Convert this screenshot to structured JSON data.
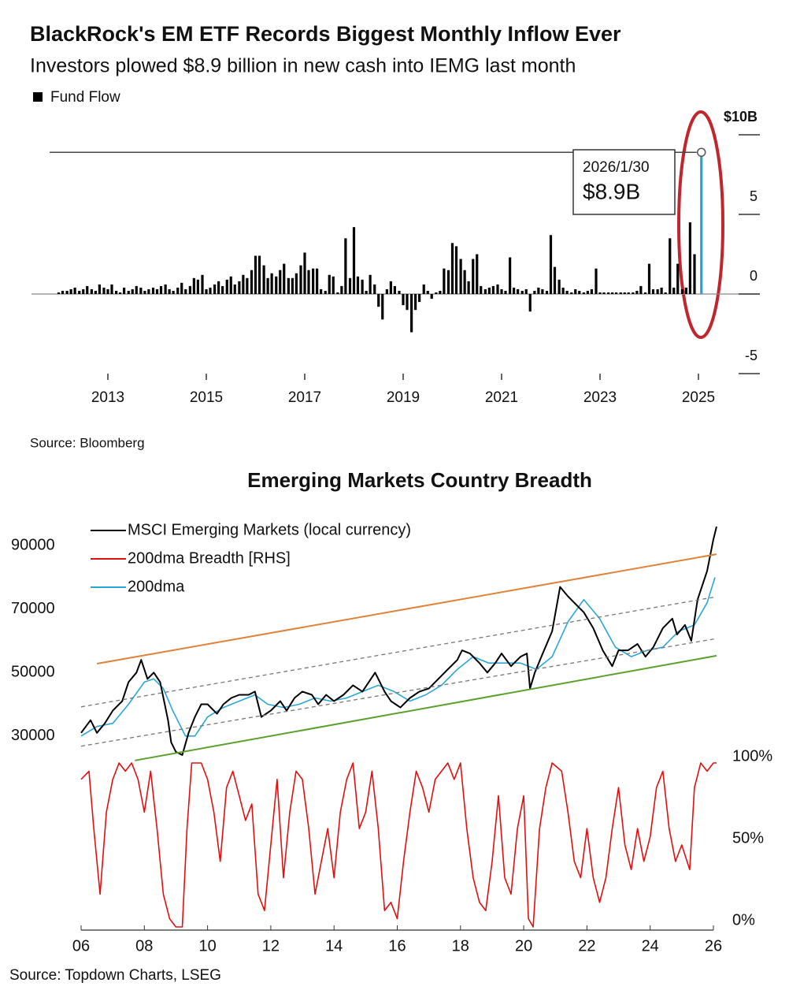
{
  "chart_data": [
    {
      "type": "bar",
      "title": "BlackRock's EM ETF Records Biggest Monthly Inflow Ever",
      "subtitle": "Investors plowed $8.9 billion in new cash into IEMG last month",
      "source": "Source: Bloomberg",
      "annotation": {
        "date": "2026/1/30",
        "label": "$8.9B"
      },
      "highlight_color": "#2a9fd6",
      "xlim": [
        2011.45,
        2026.3
      ],
      "xticks": [
        2013,
        2015,
        2017,
        2019,
        2021,
        2023,
        2025
      ],
      "ylim": [
        -5,
        11
      ],
      "yticks": [
        {
          "value": 10,
          "label": "$10B"
        },
        5,
        0,
        -5
      ],
      "x": [
        2012.0,
        2012.08,
        2012.17,
        2012.25,
        2012.33,
        2012.42,
        2012.5,
        2012.58,
        2012.67,
        2012.75,
        2012.83,
        2012.92,
        2013.0,
        2013.08,
        2013.17,
        2013.25,
        2013.33,
        2013.42,
        2013.5,
        2013.58,
        2013.67,
        2013.75,
        2013.83,
        2013.92,
        2014.0,
        2014.08,
        2014.17,
        2014.25,
        2014.33,
        2014.42,
        2014.5,
        2014.58,
        2014.67,
        2014.75,
        2014.83,
        2014.92,
        2015.0,
        2015.08,
        2015.17,
        2015.25,
        2015.33,
        2015.42,
        2015.5,
        2015.58,
        2015.67,
        2015.75,
        2015.83,
        2015.92,
        2016.0,
        2016.08,
        2016.17,
        2016.25,
        2016.33,
        2016.42,
        2016.5,
        2016.58,
        2016.67,
        2016.75,
        2016.83,
        2016.92,
        2017.0,
        2017.08,
        2017.17,
        2017.25,
        2017.33,
        2017.42,
        2017.5,
        2017.58,
        2017.67,
        2017.75,
        2017.83,
        2017.92,
        2018.0,
        2018.08,
        2018.17,
        2018.25,
        2018.33,
        2018.42,
        2018.5,
        2018.58,
        2018.67,
        2018.75,
        2018.83,
        2018.92,
        2019.0,
        2019.08,
        2019.17,
        2019.25,
        2019.33,
        2019.42,
        2019.5,
        2019.58,
        2019.67,
        2019.75,
        2019.83,
        2019.92,
        2020.0,
        2020.08,
        2020.17,
        2020.25,
        2020.33,
        2020.42,
        2020.5,
        2020.58,
        2020.67,
        2020.75,
        2020.83,
        2020.92,
        2021.0,
        2021.08,
        2021.17,
        2021.25,
        2021.33,
        2021.42,
        2021.5,
        2021.58,
        2021.67,
        2021.75,
        2021.83,
        2021.92,
        2022.0,
        2022.08,
        2022.17,
        2022.25,
        2022.33,
        2022.42,
        2022.5,
        2022.58,
        2022.67,
        2022.75,
        2022.83,
        2022.92,
        2023.0,
        2023.08,
        2023.17,
        2023.25,
        2023.33,
        2023.42,
        2023.5,
        2023.58,
        2023.67,
        2023.75,
        2023.83,
        2023.92,
        2024.0,
        2024.08,
        2024.17,
        2024.25,
        2024.33,
        2024.42,
        2024.5,
        2024.58,
        2024.67,
        2024.75,
        2024.83,
        2024.92,
        2025.06
      ],
      "series": [
        {
          "name": "Fund Flow",
          "color": "#000000",
          "values": [
            0.1,
            0.2,
            0.2,
            0.3,
            0.4,
            0.2,
            0.3,
            0.5,
            0.3,
            0.2,
            0.6,
            0.4,
            0.3,
            0.6,
            0.2,
            0.1,
            0.4,
            0.2,
            0.3,
            0.5,
            0.4,
            0.2,
            0.3,
            0.4,
            0.3,
            0.5,
            0.6,
            0.3,
            0.2,
            0.4,
            0.7,
            0.3,
            0.5,
            1.0,
            0.9,
            1.2,
            0.3,
            0.4,
            0.6,
            0.8,
            0.5,
            0.9,
            1.1,
            0.6,
            0.8,
            1.2,
            1.0,
            1.5,
            2.4,
            2.4,
            1.8,
            1.0,
            1.3,
            1.1,
            1.5,
            1.9,
            1.0,
            1.0,
            1.3,
            1.8,
            2.6,
            1.5,
            1.6,
            1.6,
            0.3,
            0.2,
            1.2,
            1.1,
            0.1,
            0.5,
            3.5,
            1.0,
            4.2,
            1.1,
            0.9,
            0.2,
            1.2,
            0.6,
            -0.8,
            -1.6,
            0.3,
            0.8,
            0.5,
            0.2,
            -0.7,
            -1.0,
            -2.4,
            -1.0,
            -0.5,
            0.6,
            0.2,
            -0.3,
            0.1,
            0.2,
            1.6,
            1.5,
            3.2,
            3.0,
            2.2,
            1.5,
            0.8,
            2.2,
            2.5,
            0.5,
            0.3,
            0.4,
            0.5,
            0.6,
            0.3,
            0.2,
            2.3,
            0.4,
            0.3,
            0.2,
            0.3,
            -1.1,
            0.2,
            0.4,
            0.3,
            0.2,
            3.7,
            1.7,
            0.9,
            0.4,
            0.2,
            0.1,
            0.3,
            0.2,
            0.1,
            0.2,
            0.3,
            1.6,
            0.1,
            0.1,
            0.1,
            0.1,
            0.1,
            0.1,
            0.1,
            0.1,
            0.1,
            0.2,
            0.5,
            0.1,
            1.9,
            0.3,
            0.3,
            0.4,
            0.1,
            3.5,
            0.4,
            1.9,
            0.3,
            0.4,
            4.5,
            2.5,
            8.9
          ]
        }
      ]
    },
    {
      "type": "line",
      "title": "Emerging Markets Country Breadth",
      "source": "Source: Topdown Charts, LSEG",
      "xlim": [
        2006,
        2026
      ],
      "xticks": [
        {
          "value": 2006,
          "label": "06"
        },
        {
          "value": 2008,
          "label": "08"
        },
        {
          "value": 2010,
          "label": "10"
        },
        {
          "value": 2012,
          "label": "12"
        },
        {
          "value": 2014,
          "label": "14"
        },
        {
          "value": 2016,
          "label": "16"
        },
        {
          "value": 2018,
          "label": "18"
        },
        {
          "value": 2020,
          "label": "20"
        },
        {
          "value": 2022,
          "label": "22"
        },
        {
          "value": 2024,
          "label": "24"
        },
        {
          "value": 2026,
          "label": "26"
        }
      ],
      "ylim": [
        22000,
        99000
      ],
      "yticks": [
        30000,
        50000,
        70000,
        90000
      ],
      "y2lim": [
        0,
        100
      ],
      "y2ticks": [
        {
          "value": 0,
          "label": "0%"
        },
        {
          "value": 50,
          "label": "50%"
        },
        {
          "value": 100,
          "label": "100%"
        }
      ],
      "series": [
        {
          "name": "MSCI Emerging Markets (local currency)",
          "color": "#000000",
          "x": [
            2006.0,
            2006.3,
            2006.5,
            2006.75,
            2007.0,
            2007.3,
            2007.5,
            2007.75,
            2007.9,
            2008.1,
            2008.3,
            2008.5,
            2008.75,
            2008.85,
            2009.0,
            2009.2,
            2009.4,
            2009.6,
            2009.8,
            2010.0,
            2010.3,
            2010.5,
            2010.75,
            2011.0,
            2011.3,
            2011.5,
            2011.7,
            2012.0,
            2012.3,
            2012.5,
            2012.75,
            2013.0,
            2013.3,
            2013.5,
            2013.75,
            2014.0,
            2014.3,
            2014.6,
            2014.9,
            2015.3,
            2015.6,
            2015.8,
            2016.1,
            2016.4,
            2016.7,
            2017.0,
            2017.3,
            2017.6,
            2017.9,
            2018.05,
            2018.3,
            2018.6,
            2018.85,
            2019.1,
            2019.3,
            2019.6,
            2019.9,
            2020.1,
            2020.2,
            2020.35,
            2020.6,
            2020.9,
            2021.15,
            2021.4,
            2021.6,
            2021.9,
            2022.2,
            2022.5,
            2022.8,
            2023.0,
            2023.3,
            2023.6,
            2023.85,
            2024.1,
            2024.4,
            2024.7,
            2024.85,
            2025.1,
            2025.3,
            2025.5,
            2025.8,
            2026.0,
            2026.1
          ],
          "values": [
            31000,
            35000,
            31000,
            34000,
            38000,
            41000,
            47000,
            50000,
            54000,
            48000,
            50000,
            47000,
            35000,
            28000,
            25000,
            24000,
            31000,
            36000,
            40000,
            40000,
            37000,
            40000,
            42000,
            43000,
            43000,
            44000,
            36000,
            38000,
            41000,
            38000,
            42000,
            44000,
            43000,
            40000,
            43000,
            41000,
            43000,
            46000,
            44000,
            50000,
            44000,
            41000,
            39000,
            42000,
            44000,
            45000,
            48000,
            51000,
            54000,
            57000,
            56000,
            53000,
            50000,
            53000,
            56000,
            52000,
            55000,
            56000,
            45000,
            50000,
            56000,
            63000,
            77000,
            74000,
            72000,
            69000,
            64000,
            57000,
            52000,
            57000,
            57000,
            59000,
            55000,
            58000,
            64000,
            67000,
            62000,
            65000,
            60000,
            73000,
            82000,
            92000,
            96000
          ]
        },
        {
          "name": "200dma Breadth [RHS]",
          "color": "#e01010",
          "axis": "y2",
          "x": [
            2006.0,
            2006.25,
            2006.4,
            2006.6,
            2006.8,
            2007.0,
            2007.2,
            2007.4,
            2007.6,
            2007.8,
            2008.0,
            2008.2,
            2008.4,
            2008.6,
            2008.8,
            2009.0,
            2009.2,
            2009.35,
            2009.5,
            2009.8,
            2010.0,
            2010.2,
            2010.4,
            2010.6,
            2010.8,
            2011.0,
            2011.2,
            2011.4,
            2011.6,
            2011.8,
            2012.0,
            2012.2,
            2012.4,
            2012.6,
            2012.8,
            2013.0,
            2013.2,
            2013.4,
            2013.6,
            2013.8,
            2014.0,
            2014.2,
            2014.4,
            2014.6,
            2014.8,
            2015.0,
            2015.2,
            2015.4,
            2015.6,
            2015.8,
            2016.0,
            2016.2,
            2016.4,
            2016.6,
            2016.8,
            2017.0,
            2017.2,
            2017.4,
            2017.6,
            2017.8,
            2018.0,
            2018.2,
            2018.4,
            2018.6,
            2018.8,
            2019.0,
            2019.2,
            2019.4,
            2019.6,
            2019.8,
            2020.0,
            2020.15,
            2020.3,
            2020.5,
            2020.7,
            2020.9,
            2021.2,
            2021.4,
            2021.6,
            2021.8,
            2022.0,
            2022.2,
            2022.4,
            2022.6,
            2022.8,
            2023.0,
            2023.2,
            2023.4,
            2023.6,
            2023.8,
            2024.0,
            2024.2,
            2024.4,
            2024.6,
            2024.8,
            2025.0,
            2025.25,
            2025.4,
            2025.6,
            2025.8,
            2026.0,
            2026.1
          ],
          "values": [
            90,
            95,
            60,
            20,
            70,
            90,
            100,
            95,
            100,
            90,
            70,
            95,
            60,
            20,
            5,
            0,
            0,
            60,
            100,
            100,
            90,
            70,
            40,
            85,
            95,
            80,
            65,
            75,
            20,
            10,
            50,
            90,
            30,
            70,
            95,
            90,
            60,
            20,
            40,
            60,
            30,
            70,
            90,
            100,
            60,
            70,
            95,
            60,
            10,
            15,
            5,
            40,
            70,
            95,
            85,
            70,
            90,
            95,
            100,
            90,
            100,
            60,
            30,
            15,
            10,
            40,
            80,
            30,
            20,
            60,
            80,
            5,
            0,
            60,
            85,
            100,
            95,
            70,
            40,
            30,
            60,
            30,
            15,
            30,
            60,
            85,
            50,
            35,
            60,
            40,
            55,
            85,
            95,
            60,
            40,
            50,
            35,
            85,
            100,
            95,
            100,
            100
          ]
        },
        {
          "name": "200dma",
          "color": "#2aa7d6",
          "x": [
            2006.0,
            2006.5,
            2007.0,
            2007.5,
            2008.0,
            2008.3,
            2008.6,
            2008.9,
            2009.3,
            2009.6,
            2010.0,
            2010.5,
            2011.0,
            2011.5,
            2011.9,
            2012.4,
            2012.9,
            2013.4,
            2013.9,
            2014.4,
            2014.9,
            2015.4,
            2015.9,
            2016.4,
            2016.9,
            2017.4,
            2017.9,
            2018.4,
            2018.9,
            2019.4,
            2019.9,
            2020.4,
            2020.9,
            2021.4,
            2021.9,
            2022.4,
            2022.9,
            2023.4,
            2023.9,
            2024.4,
            2024.9,
            2025.4,
            2025.8,
            2026.05
          ],
          "values": [
            30000,
            33000,
            34000,
            40000,
            47000,
            48000,
            45000,
            38000,
            30000,
            30000,
            36000,
            39000,
            41000,
            43000,
            40000,
            39000,
            40000,
            42000,
            41000,
            42000,
            44000,
            46000,
            44000,
            41000,
            43000,
            46000,
            51000,
            55000,
            53000,
            53000,
            53000,
            51000,
            55000,
            66000,
            73000,
            67000,
            58000,
            55000,
            57000,
            58000,
            63000,
            65000,
            72000,
            80000
          ]
        }
      ],
      "lines": [
        {
          "color": "#e0823a",
          "dash": false,
          "x": [
            2006.5,
            2026.1
          ],
          "values": [
            52800,
            87300
          ]
        },
        {
          "color": "#777777",
          "dash": true,
          "x": [
            2006.0,
            2026.1
          ],
          "values": [
            39200,
            73900
          ]
        },
        {
          "color": "#777777",
          "dash": true,
          "x": [
            2006.0,
            2026.1
          ],
          "values": [
            26800,
            60700
          ]
        },
        {
          "color": "#5aa02c",
          "dash": false,
          "x": [
            2007.7,
            2026.1
          ],
          "values": [
            22300,
            55300
          ]
        }
      ]
    }
  ]
}
